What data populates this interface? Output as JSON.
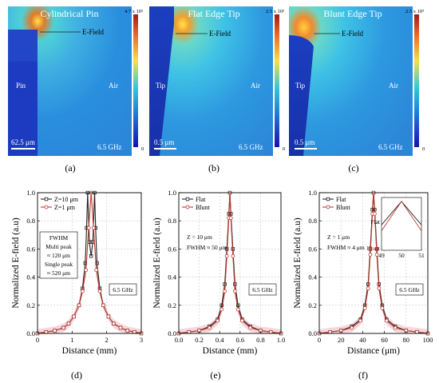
{
  "sims": [
    {
      "title": "Cylindrical Pin",
      "efield": "E-Field",
      "left": "Pin",
      "right": "Air",
      "scale": "62.5 μm",
      "freq": "6.5 GHz",
      "cbar_top": "4.7 x 10⁵",
      "cbar_bottom": "0",
      "panel": "(a)",
      "shape": "pin"
    },
    {
      "title": "Flat Edge Tip",
      "efield": "E-Field",
      "left": "Tip",
      "right": "Air",
      "scale": "0.5 μm",
      "freq": "6.5 GHz",
      "cbar_top": "2.5 x 10⁵",
      "cbar_bottom": "0",
      "panel": "(b)",
      "shape": "flat"
    },
    {
      "title": "Blunt Edge Tip",
      "efield": "E-Field",
      "left": "Tip",
      "right": "Air",
      "scale": "0.5 μm",
      "freq": "6.5 GHz",
      "cbar_top": "2.5 x 10⁵",
      "cbar_bottom": "0",
      "panel": "(c)",
      "shape": "blunt"
    }
  ],
  "colors": {
    "series1": "#222222",
    "series2": "#c0392b",
    "band": "#f2c6cf",
    "grid": "#bdbdbd"
  },
  "chart_data": [
    {
      "type": "line",
      "panel": "(d)",
      "xlabel": "Distance (mm)",
      "ylabel": "Normalized E-field (a.u)",
      "xlim": [
        0,
        3
      ],
      "ylim": [
        0,
        1.0
      ],
      "xticks": [
        "0",
        "1",
        "2",
        "3"
      ],
      "yticks": [
        "0.0",
        "0.2",
        "0.4",
        "0.6",
        "0.8",
        "1.0"
      ],
      "legend": [
        "Z=10 μm",
        "Z=1 μm"
      ],
      "annotations": [
        "FWHM",
        "Multi peak",
        "≈ 120 μm",
        "Single peak",
        "≈ 520 μm"
      ],
      "freq": "6.5 GHz",
      "series": [
        {
          "name": "Z=10 μm",
          "points": [
            [
              0,
              0
            ],
            [
              0.25,
              0.01
            ],
            [
              0.5,
              0.02
            ],
            [
              0.75,
              0.04
            ],
            [
              0.9,
              0.07
            ],
            [
              1.05,
              0.12
            ],
            [
              1.2,
              0.2
            ],
            [
              1.3,
              0.32
            ],
            [
              1.38,
              0.5
            ],
            [
              1.42,
              0.75
            ],
            [
              1.45,
              1.0
            ],
            [
              1.5,
              0.65
            ],
            [
              1.55,
              0.55
            ],
            [
              1.6,
              0.65
            ],
            [
              1.65,
              1.0
            ],
            [
              1.68,
              0.75
            ],
            [
              1.72,
              0.5
            ],
            [
              1.8,
              0.32
            ],
            [
              1.9,
              0.2
            ],
            [
              2.05,
              0.12
            ],
            [
              2.2,
              0.07
            ],
            [
              2.4,
              0.04
            ],
            [
              2.6,
              0.02
            ],
            [
              2.8,
              0.01
            ],
            [
              3,
              0
            ]
          ]
        },
        {
          "name": "Z=1 μm",
          "points": [
            [
              0,
              0
            ],
            [
              0.25,
              0.01
            ],
            [
              0.5,
              0.02
            ],
            [
              0.75,
              0.04
            ],
            [
              0.9,
              0.07
            ],
            [
              1.05,
              0.12
            ],
            [
              1.2,
              0.2
            ],
            [
              1.3,
              0.3
            ],
            [
              1.4,
              0.45
            ],
            [
              1.48,
              0.75
            ],
            [
              1.55,
              1.0
            ],
            [
              1.62,
              0.75
            ],
            [
              1.7,
              0.45
            ],
            [
              1.8,
              0.3
            ],
            [
              1.9,
              0.2
            ],
            [
              2.05,
              0.12
            ],
            [
              2.2,
              0.07
            ],
            [
              2.4,
              0.04
            ],
            [
              2.6,
              0.02
            ],
            [
              2.8,
              0.01
            ],
            [
              3,
              0
            ]
          ]
        }
      ]
    },
    {
      "type": "line",
      "panel": "(e)",
      "xlabel": "Distance (mm)",
      "ylabel": "Normalized E-field (a.u)",
      "xlim": [
        0,
        1.0
      ],
      "ylim": [
        0,
        1.0
      ],
      "xticks": [
        "0.0",
        "0.2",
        "0.4",
        "0.6",
        "0.8",
        "1.0"
      ],
      "yticks": [
        "0.0",
        "0.2",
        "0.4",
        "0.6",
        "0.8",
        "1.0"
      ],
      "legend": [
        "Flat",
        "Blunt"
      ],
      "annotations": [
        "Z = 10 μm",
        "FWHM ≈ 50 μm"
      ],
      "freq": "6.5 GHz",
      "series": [
        {
          "name": "Flat",
          "points": [
            [
              0,
              0
            ],
            [
              0.1,
              0.01
            ],
            [
              0.2,
              0.02
            ],
            [
              0.3,
              0.05
            ],
            [
              0.38,
              0.1
            ],
            [
              0.42,
              0.2
            ],
            [
              0.45,
              0.35
            ],
            [
              0.47,
              0.6
            ],
            [
              0.49,
              0.85
            ],
            [
              0.5,
              1.0
            ],
            [
              0.51,
              0.85
            ],
            [
              0.53,
              0.6
            ],
            [
              0.55,
              0.35
            ],
            [
              0.58,
              0.2
            ],
            [
              0.62,
              0.1
            ],
            [
              0.7,
              0.05
            ],
            [
              0.8,
              0.02
            ],
            [
              0.9,
              0.01
            ],
            [
              1.0,
              0
            ]
          ]
        },
        {
          "name": "Blunt",
          "points": [
            [
              0,
              0
            ],
            [
              0.1,
              0.01
            ],
            [
              0.2,
              0.02
            ],
            [
              0.3,
              0.04
            ],
            [
              0.38,
              0.09
            ],
            [
              0.42,
              0.17
            ],
            [
              0.45,
              0.3
            ],
            [
              0.47,
              0.55
            ],
            [
              0.49,
              0.82
            ],
            [
              0.5,
              1.0
            ],
            [
              0.51,
              0.82
            ],
            [
              0.53,
              0.55
            ],
            [
              0.55,
              0.3
            ],
            [
              0.58,
              0.17
            ],
            [
              0.62,
              0.09
            ],
            [
              0.7,
              0.04
            ],
            [
              0.8,
              0.02
            ],
            [
              0.9,
              0.01
            ],
            [
              1.0,
              0
            ]
          ]
        }
      ]
    },
    {
      "type": "line",
      "panel": "(f)",
      "xlabel": "Distance (μm)",
      "ylabel": "Normalized E-field (a.u)",
      "xlim": [
        0,
        100
      ],
      "ylim": [
        0,
        1.0
      ],
      "xticks": [
        "0",
        "20",
        "40",
        "60",
        "80",
        "100"
      ],
      "yticks": [
        "0.0",
        "0.2",
        "0.4",
        "0.6",
        "0.8",
        "1.0"
      ],
      "legend": [
        "Flat",
        "Blunt"
      ],
      "annotations": [
        "Z = 1 μm",
        "FWHM ≈ 4 μm"
      ],
      "inset": {
        "xticks": [
          "49",
          "50",
          "51"
        ],
        "flat_label": "Flat",
        "blunt_label": "Blunt"
      },
      "freq": "6.5 GHz",
      "series": [
        {
          "name": "Flat",
          "points": [
            [
              0,
              0
            ],
            [
              10,
              0.01
            ],
            [
              20,
              0.02
            ],
            [
              30,
              0.05
            ],
            [
              38,
              0.1
            ],
            [
              42,
              0.2
            ],
            [
              45,
              0.35
            ],
            [
              47,
              0.6
            ],
            [
              49,
              0.88
            ],
            [
              50,
              1.0
            ],
            [
              51,
              0.88
            ],
            [
              53,
              0.6
            ],
            [
              55,
              0.35
            ],
            [
              58,
              0.2
            ],
            [
              62,
              0.1
            ],
            [
              70,
              0.05
            ],
            [
              80,
              0.02
            ],
            [
              90,
              0.01
            ],
            [
              100,
              0
            ]
          ]
        },
        {
          "name": "Blunt",
          "points": [
            [
              0,
              0
            ],
            [
              10,
              0.01
            ],
            [
              20,
              0.02
            ],
            [
              30,
              0.04
            ],
            [
              38,
              0.09
            ],
            [
              42,
              0.18
            ],
            [
              45,
              0.32
            ],
            [
              47,
              0.56
            ],
            [
              49,
              0.85
            ],
            [
              50,
              1.0
            ],
            [
              51,
              0.85
            ],
            [
              53,
              0.56
            ],
            [
              55,
              0.32
            ],
            [
              58,
              0.18
            ],
            [
              62,
              0.09
            ],
            [
              70,
              0.04
            ],
            [
              80,
              0.02
            ],
            [
              90,
              0.01
            ],
            [
              100,
              0
            ]
          ]
        }
      ]
    }
  ]
}
